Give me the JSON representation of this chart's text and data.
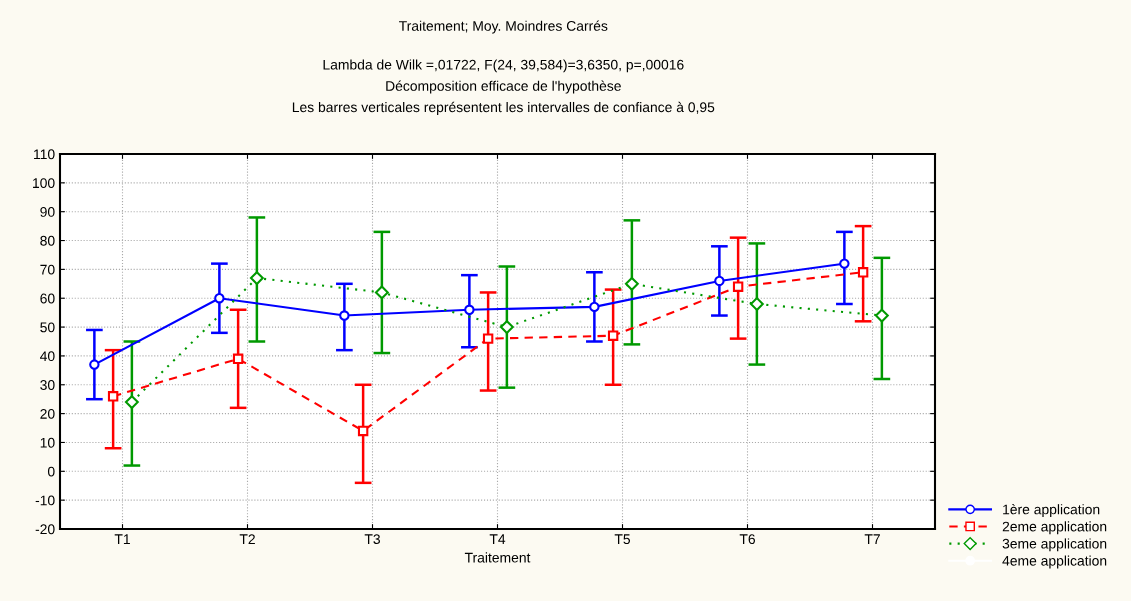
{
  "chart_data": {
    "type": "line",
    "title": "Traitement; Moy. Moindres Carrés",
    "subtitle": "Lambda de Wilk =,01722, F(24, 39,584)=3,6350, p=,00016\nDécomposition efficace de l'hypothèse\nLes barres verticales représentent les intervalles de confiance à 0,95",
    "xlabel": "Traitement",
    "categories": [
      "T1",
      "T2",
      "T3",
      "T4",
      "T5",
      "T6",
      "T7"
    ],
    "series": [
      {
        "name": "1ère application",
        "color": "#0000ff",
        "marker": "circle",
        "line_style": "solid",
        "values": [
          37,
          60,
          54,
          56,
          57,
          66,
          72
        ],
        "errors": [
          [
            25,
            49
          ],
          [
            48,
            72
          ],
          [
            42,
            65
          ],
          [
            43,
            68
          ],
          [
            45,
            69
          ],
          [
            54,
            78
          ],
          [
            58,
            83
          ]
        ]
      },
      {
        "name": "2eme application",
        "color": "#ff0000",
        "marker": "square",
        "line_style": "dashed",
        "values": [
          26,
          39,
          14,
          46,
          47,
          64,
          69
        ],
        "errors": [
          [
            8,
            42
          ],
          [
            22,
            56
          ],
          [
            -4,
            30
          ],
          [
            28,
            62
          ],
          [
            30,
            63
          ],
          [
            46,
            81
          ],
          [
            52,
            85
          ]
        ]
      },
      {
        "name": "3eme application",
        "color": "#009900",
        "marker": "diamond",
        "line_style": "dotted",
        "values": [
          24,
          67,
          62,
          50,
          65,
          58,
          54
        ],
        "errors": [
          [
            2,
            45
          ],
          [
            45,
            88
          ],
          [
            41,
            83
          ],
          [
            29,
            71
          ],
          [
            44,
            87
          ],
          [
            37,
            79
          ],
          [
            32,
            74
          ]
        ]
      },
      {
        "name": "4eme application",
        "color": "#ffffff",
        "marker": "circle",
        "line_style": "solid",
        "values": [
          null,
          null,
          null,
          null,
          null,
          null,
          null
        ]
      }
    ],
    "ylim": [
      -20,
      110
    ],
    "yticks": [
      -20,
      -10,
      0,
      10,
      20,
      30,
      40,
      50,
      60,
      70,
      80,
      90,
      100,
      110
    ],
    "grid": true,
    "legend": "bottom right"
  }
}
